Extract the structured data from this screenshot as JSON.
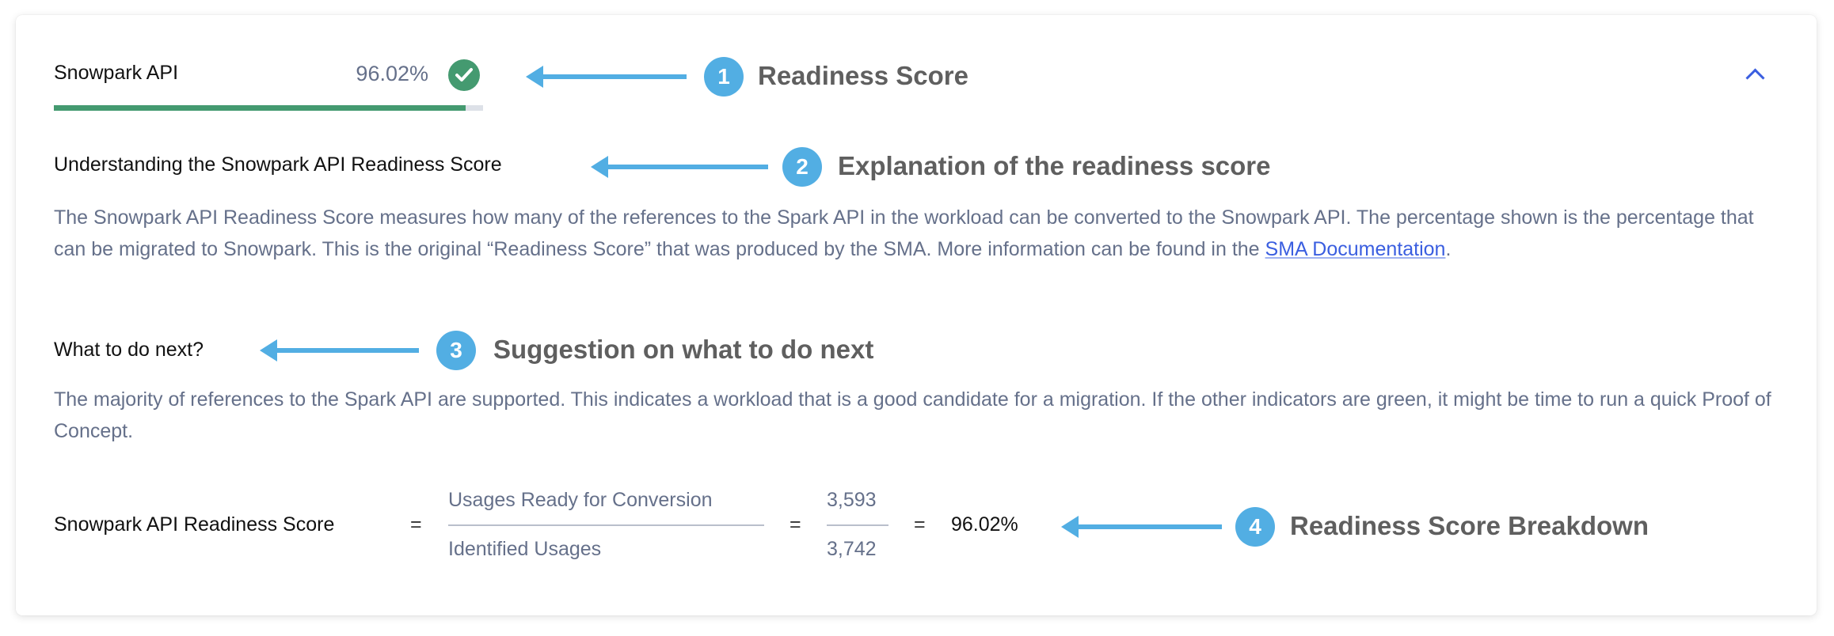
{
  "header": {
    "title": "Snowpark API",
    "score": "96.02%",
    "score_fraction": 0.9602,
    "status_icon": "check-circle-icon",
    "expanded": true
  },
  "understanding": {
    "heading": "Understanding the Snowpark API Readiness Score",
    "text": "The Snowpark API Readiness Score measures how many of the references to the Spark API in the workload can be converted to the Snowpark API. The percentage shown is the percentage that can be migrated to Snowpark. This is the original “Readiness Score” that was produced by the SMA. More information can be found in the ",
    "link": "SMA Documentation",
    "text_end": "."
  },
  "next": {
    "heading": "What to do next?",
    "text": "The majority of references to the Spark API are supported. This indicates a workload that is a good candidate for a migration. If the other indicators are green, it might be time to run a quick Proof of Concept."
  },
  "formula": {
    "label": "Snowpark API Readiness Score",
    "eq": "=",
    "numerator_label": "Usages Ready for Conversion",
    "denominator_label": "Identified Usages",
    "numerator": "3,593",
    "denominator": "3,742",
    "result": "96.02%"
  },
  "annotations": [
    {
      "number": "1",
      "label": "Readiness Score"
    },
    {
      "number": "2",
      "label": "Explanation of the readiness score"
    },
    {
      "number": "3",
      "label": "Suggestion on what to do next"
    },
    {
      "number": "4",
      "label": "Readiness Score Breakdown"
    }
  ],
  "colors": {
    "success": "#449a70",
    "link": "#3a5ee0",
    "annotation": "#52aee3"
  }
}
